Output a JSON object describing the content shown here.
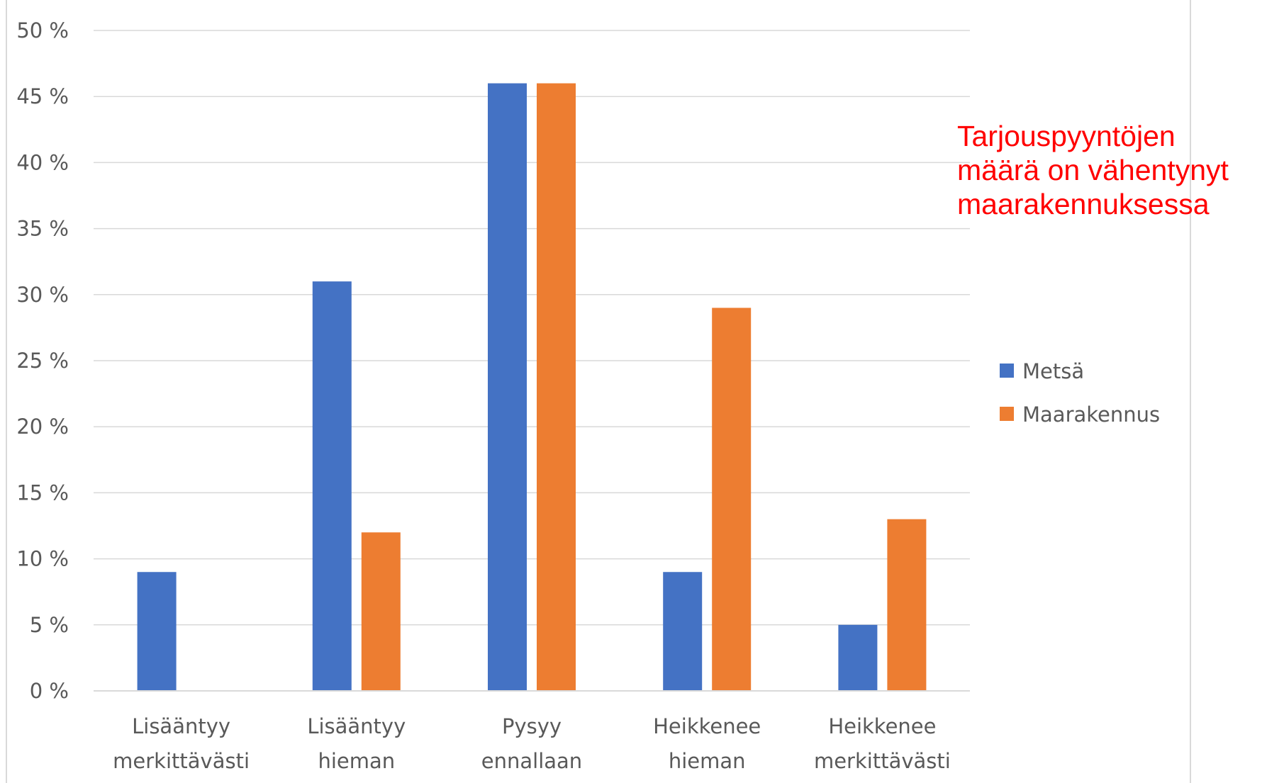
{
  "chart_data": {
    "type": "bar",
    "categories": [
      [
        "Lisääntyy",
        "merkittävästi"
      ],
      [
        "Lisääntyy",
        "hieman"
      ],
      [
        "Pysyy",
        "ennallaan"
      ],
      [
        "Heikkenee",
        "hieman"
      ],
      [
        "Heikkenee",
        "merkittävästi"
      ]
    ],
    "series": [
      {
        "name": "Metsä",
        "color": "#4472c4",
        "values": [
          9,
          31,
          46,
          9,
          5
        ]
      },
      {
        "name": "Maarakennus",
        "color": "#ed7d31",
        "values": [
          0,
          12,
          46,
          29,
          13
        ]
      }
    ],
    "ylim": [
      0,
      50
    ],
    "yticks": [
      0,
      5,
      10,
      15,
      20,
      25,
      30,
      35,
      40,
      45,
      50
    ],
    "ytick_labels": [
      "0 %",
      "5 %",
      "10 %",
      "15 %",
      "20 %",
      "25 %",
      "30 %",
      "35 %",
      "40 %",
      "45 %",
      "50 %"
    ],
    "grid": true,
    "legend_position": "right",
    "annotation": {
      "lines": [
        "Tarjouspyyntöjen",
        "määrä on vähentynyt",
        "maarakennuksessa"
      ],
      "color": "#ff0000"
    }
  }
}
